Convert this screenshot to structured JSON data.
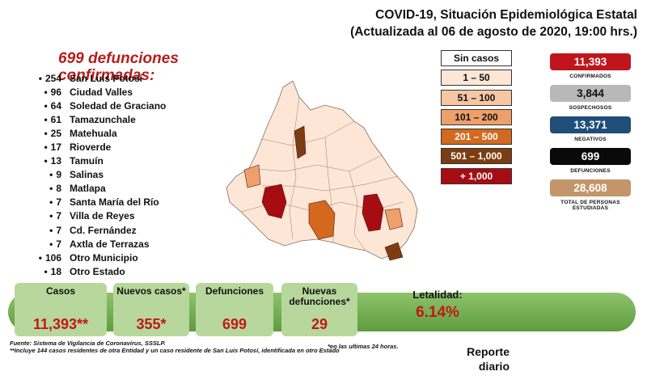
{
  "header": {
    "title_line1": "COVID-19, Situación Epidemiológica Estatal",
    "title_line2": "(Actualizada al 06 de agosto de 2020, 19:00 hrs.)"
  },
  "deaths_title": "699 defunciones confirmadas:",
  "municipalities": [
    {
      "count": "254",
      "name": "San Luis Potosí"
    },
    {
      "count": "96",
      "name": "Ciudad Valles"
    },
    {
      "count": "64",
      "name": "Soledad de Graciano"
    },
    {
      "count": "61",
      "name": "Tamazunchale"
    },
    {
      "count": "25",
      "name": "Matehuala"
    },
    {
      "count": "17",
      "name": "Rioverde"
    },
    {
      "count": "13",
      "name": "Tamuín"
    },
    {
      "count": "9",
      "name": "Salinas"
    },
    {
      "count": "8",
      "name": "Matlapa"
    },
    {
      "count": "7",
      "name": "Santa María del Río"
    },
    {
      "count": "7",
      "name": "Villa de Reyes"
    },
    {
      "count": "7",
      "name": "Cd. Fernández"
    },
    {
      "count": "7",
      "name": "Axtla de Terrazas"
    },
    {
      "count": "106",
      "name": "Otro Municipio"
    },
    {
      "count": "18",
      "name": "Otro Estado"
    }
  ],
  "legend": [
    {
      "label": "Sin casos",
      "color": "#ffffff",
      "text_color": "#111111"
    },
    {
      "label": "1 – 50",
      "color": "#fde6d6",
      "text_color": "#111111"
    },
    {
      "label": "51 – 100",
      "color": "#f7c6a3",
      "text_color": "#111111"
    },
    {
      "label": "101 – 200",
      "color": "#eea06a",
      "text_color": "#111111"
    },
    {
      "label": "201 – 500",
      "color": "#d2691e",
      "text_color": "#ffffff"
    },
    {
      "label": "501 – 1,000",
      "color": "#7a3e12",
      "text_color": "#ffffff"
    },
    {
      "label": "+ 1,000",
      "color": "#a50d12",
      "text_color": "#ffffff"
    }
  ],
  "stats": [
    {
      "value": "11,393",
      "label": "CONFIRMADOS",
      "color": "#c0161b",
      "text_color": "#ffffff"
    },
    {
      "value": "3,844",
      "label": "SOSPECHOSOS",
      "color": "#b8b8b8",
      "text_color": "#111111"
    },
    {
      "value": "13,371",
      "label": "NEGATIVOS",
      "color": "#1f4e79",
      "text_color": "#ffffff"
    },
    {
      "value": "699",
      "label": "DEFUNCIONES",
      "color": "#0a0a0a",
      "text_color": "#ffffff"
    },
    {
      "value": "28,608",
      "label": "TOTAL DE PERSONAS ESTUDIADAS",
      "color": "#c4956a",
      "text_color": "#ffffff"
    }
  ],
  "summary": {
    "cases_label": "Casos",
    "cases_value": "11,393**",
    "new_cases_label": "Nuevos casos*",
    "new_cases_value": "355*",
    "deaths_label": "Defunciones",
    "deaths_value": "699",
    "new_deaths_label": "Nuevas defunciones*",
    "new_deaths_value": "29",
    "lethality_label": "Letalidad:",
    "lethality_value": "6.14%"
  },
  "footer": {
    "source": "Fuente: Sistema de Vigilancia de Coronavirus, SSSLP.",
    "note1": "*en las ultimas 24 horas.",
    "note2": "**Incluye 144 casos residentes de otra Entidad y un caso residente de San Luis Potosí, identificada en otro Estado",
    "report": "Reporte diario"
  },
  "map": {
    "base_color": "#fde6d6",
    "high_color": "#a50d12",
    "mid_color": "#d2691e",
    "dark_color": "#7a3e12",
    "light_color": "#eea06a"
  }
}
